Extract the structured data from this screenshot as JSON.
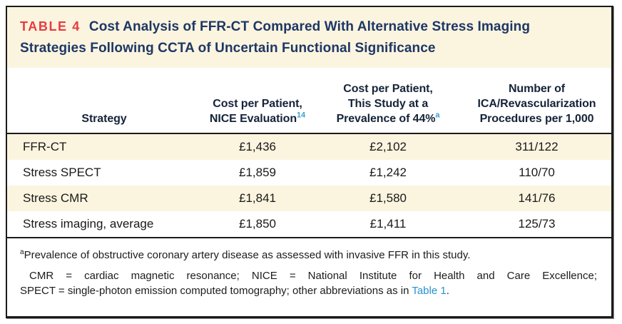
{
  "title": {
    "tag": "TABLE 4",
    "text": "Cost Analysis of FFR-CT Compared With Alternative Stress Imaging Strategies Following CCTA of Uncertain Functional Significance"
  },
  "header": {
    "strategy": {
      "label": "Strategy"
    },
    "nice": {
      "line1": "Cost per Patient,",
      "line2": "NICE Evaluation",
      "sup": "14"
    },
    "study": {
      "line1": "Cost per Patient,",
      "line2": "This Study at a",
      "line3": "Prevalence of 44%",
      "sup": "a"
    },
    "procedures": {
      "line1": "Number of",
      "line2": "ICA/Revascularization",
      "line3": "Procedures per 1,000"
    }
  },
  "rows": [
    {
      "strategy": "FFR-CT",
      "nice": "£1,436",
      "study": "£2,102",
      "procedures": "311/122"
    },
    {
      "strategy": "Stress SPECT",
      "nice": "£1,859",
      "study": "£1,242",
      "procedures": "110/70"
    },
    {
      "strategy": "Stress CMR",
      "nice": "£1,841",
      "study": "£1,580",
      "procedures": "141/76"
    },
    {
      "strategy": "Stress imaging, average",
      "nice": "£1,850",
      "study": "£1,411",
      "procedures": "125/73"
    }
  ],
  "footnotes": {
    "note_a_sup": "a",
    "note_a_text": "Prevalence of obstructive coronary artery disease as assessed with invasive FFR in this study.",
    "abbr_line1": "CMR = cardiac magnetic resonance; NICE = National Institute for Health and Care Excellence;",
    "abbr_line2_pre": "SPECT = single-photon emission computed tomography; other abbreviations as in ",
    "abbr_link": "Table 1",
    "abbr_line2_post": "."
  },
  "colors": {
    "accent_red": "#e73b42",
    "title_navy": "#1e3765",
    "band_cream": "#fbf4df",
    "header_text": "#152339",
    "link_blue": "#2a91cf",
    "sup_blue": "#3d9fd1",
    "border_black": "#1b1b1b"
  }
}
